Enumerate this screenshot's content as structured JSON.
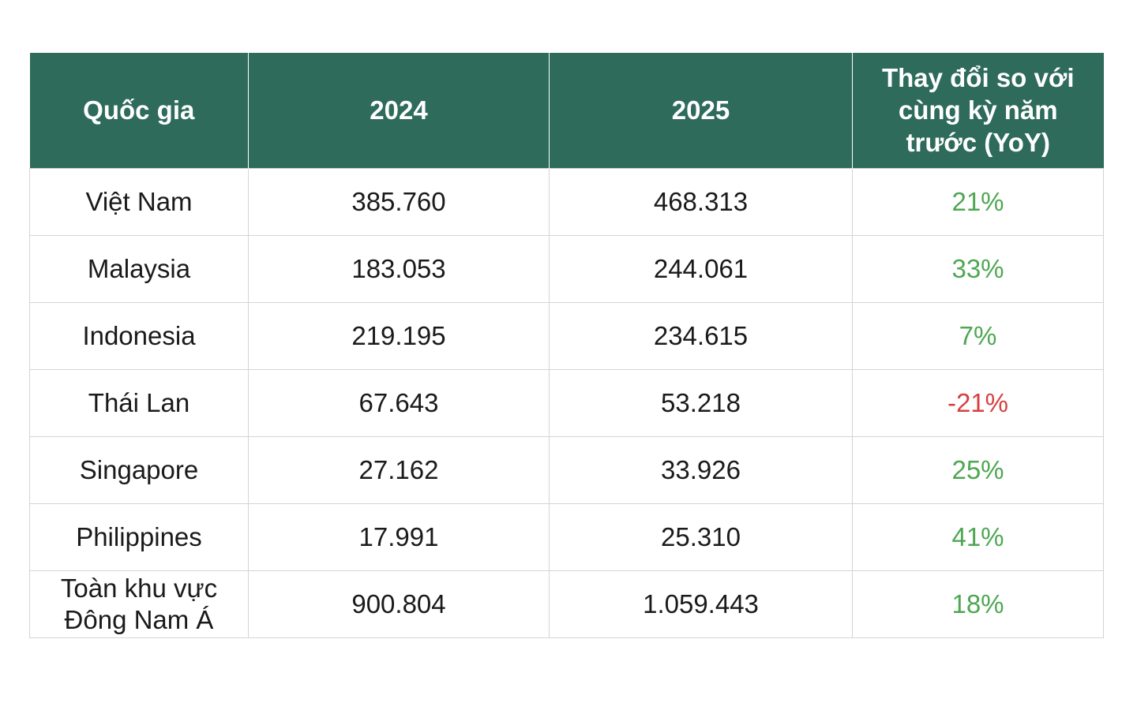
{
  "chart_data": {
    "type": "table",
    "columns": [
      "Quốc gia",
      "2024",
      "2025",
      "Thay đổi so với cùng kỳ năm trước (YoY)"
    ],
    "rows": [
      {
        "country": "Việt Nam",
        "y2024": "385.760",
        "y2025": "468.313",
        "yoy": "21%",
        "trend": "pos"
      },
      {
        "country": "Malaysia",
        "y2024": "183.053",
        "y2025": "244.061",
        "yoy": "33%",
        "trend": "pos"
      },
      {
        "country": "Indonesia",
        "y2024": "219.195",
        "y2025": "234.615",
        "yoy": "7%",
        "trend": "pos"
      },
      {
        "country": "Thái Lan",
        "y2024": "67.643",
        "y2025": "53.218",
        "yoy": "-21%",
        "trend": "neg"
      },
      {
        "country": "Singapore",
        "y2024": "27.162",
        "y2025": "33.926",
        "yoy": "25%",
        "trend": "pos"
      },
      {
        "country": "Philippines",
        "y2024": "17.991",
        "y2025": "25.310",
        "yoy": "41%",
        "trend": "pos"
      },
      {
        "country": "Toàn khu vực Đông Nam Á",
        "y2024": "900.804",
        "y2025": "1.059.443",
        "yoy": "18%",
        "trend": "pos"
      }
    ]
  },
  "colors": {
    "header_bg": "#2e6b5b",
    "header_text": "#ffffff",
    "positive": "#4ea752",
    "negative": "#d64040",
    "grid": "#d4d4d4"
  }
}
